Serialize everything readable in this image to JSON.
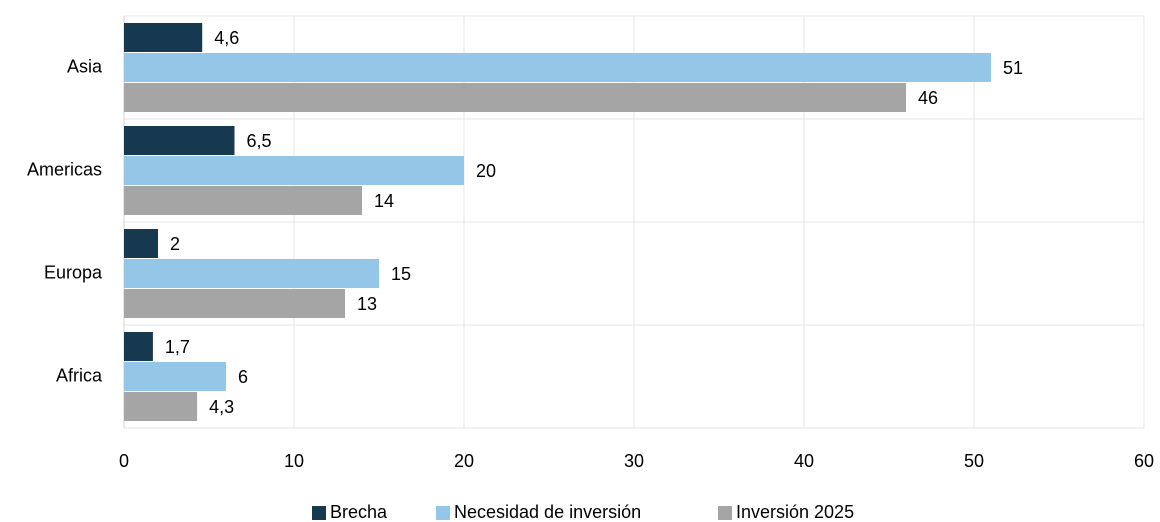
{
  "chart_data": {
    "type": "bar",
    "orientation": "horizontal",
    "categories": [
      "Asia",
      "Americas",
      "Europa",
      "Africa"
    ],
    "series": [
      {
        "name": "Brecha",
        "color": "#17394f",
        "values": [
          4.6,
          6.5,
          2,
          1.7
        ],
        "value_labels": [
          "4,6",
          "6,5",
          "2",
          "1,7"
        ]
      },
      {
        "name": "Necesidad de inversión",
        "color": "#94c7e7",
        "values": [
          51,
          20,
          15,
          6
        ]
      },
      {
        "name": "Inversión 2025",
        "color": "#a5a5a5",
        "values": [
          46,
          14,
          13,
          4.3
        ],
        "value_labels": [
          "46",
          "14",
          "13",
          "4,3"
        ]
      }
    ],
    "xlim": [
      0,
      60
    ],
    "xticks": [
      0,
      10,
      20,
      30,
      40,
      50,
      60
    ],
    "grid": true,
    "legend": "bottom"
  }
}
